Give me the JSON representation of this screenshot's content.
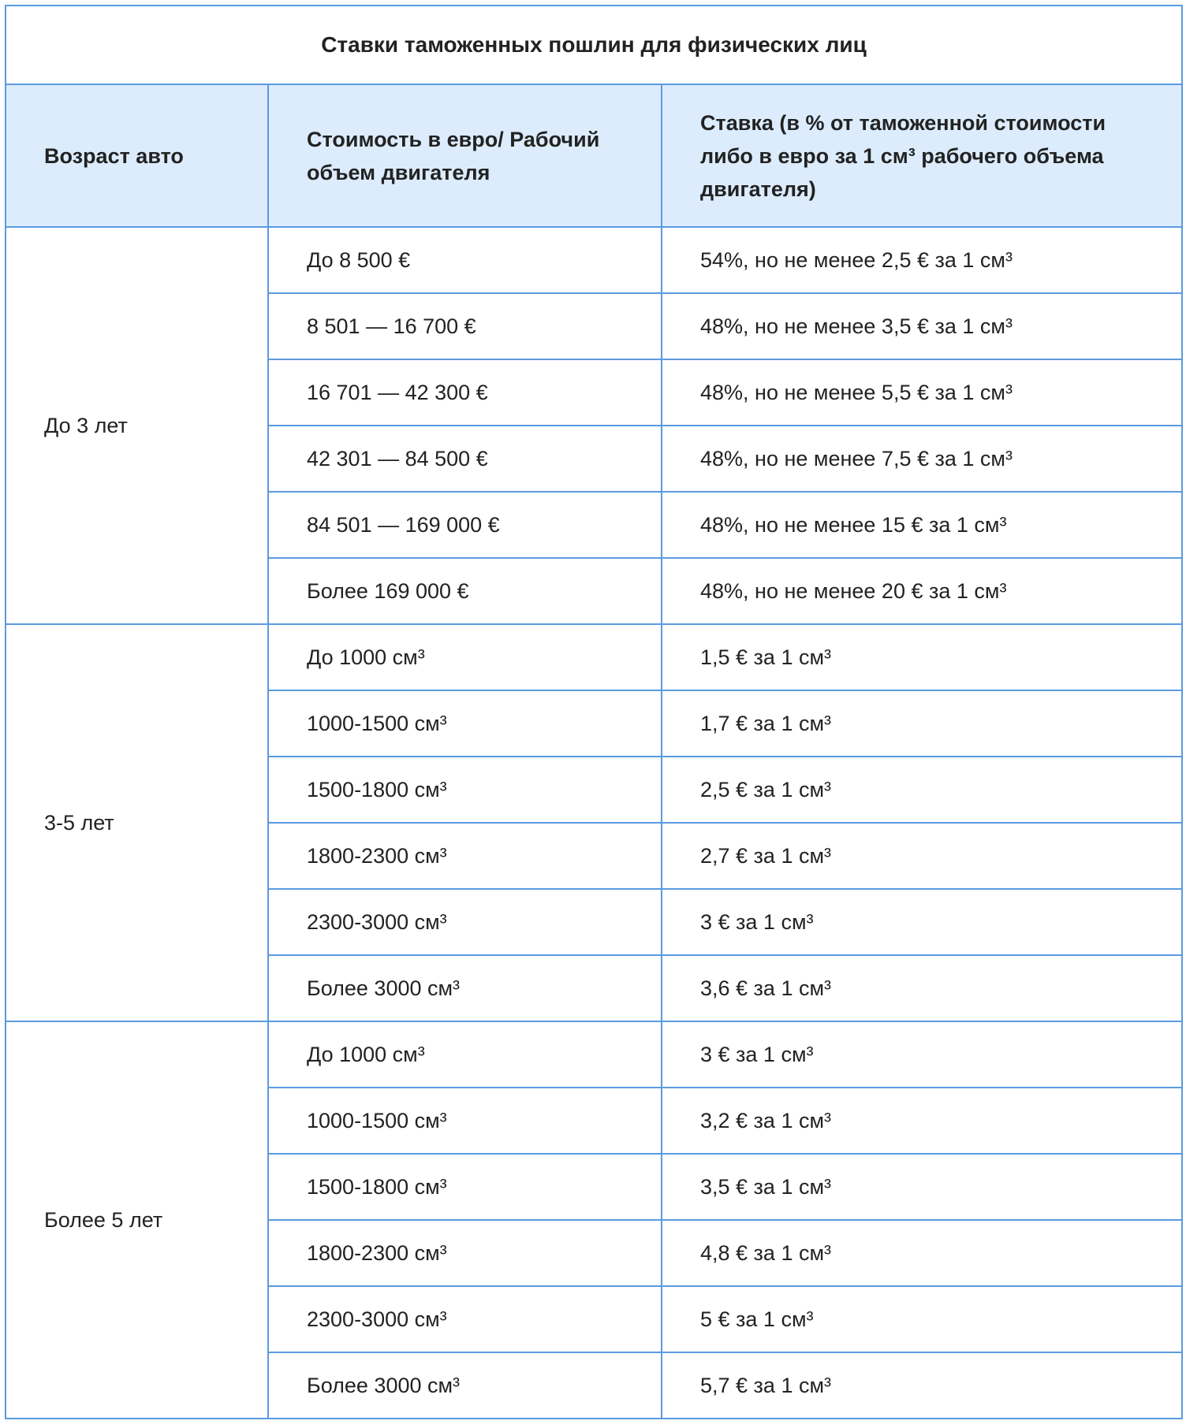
{
  "title": "Ставки таможенных пошлин для физических лиц",
  "headers": [
    "Возраст авто",
    "Стоимость в евро/ Рабочий объем двигателя",
    "Ставка (в % от таможенной стоимости либо в евро за 1 см³ рабочего объема двигателя)"
  ],
  "groups": [
    {
      "age": "До 3 лет",
      "rows": [
        [
          "До 8 500 €",
          "54%, но не менее 2,5 € за 1 см³"
        ],
        [
          "8 501 — 16 700 €",
          "48%, но не менее 3,5 € за 1 см³"
        ],
        [
          "16 701 — 42 300 €",
          "48%, но не менее 5,5 € за 1 см³"
        ],
        [
          "42 301 — 84 500 €",
          "48%, но не менее 7,5 € за 1 см³"
        ],
        [
          "84 501 — 169 000 €",
          "48%, но не менее 15 € за 1 см³"
        ],
        [
          "Более 169 000 €",
          "48%, но не менее 20 € за 1 см³"
        ]
      ]
    },
    {
      "age": "3-5 лет",
      "rows": [
        [
          "До 1000 см³",
          "1,5 € за 1 см³"
        ],
        [
          "1000-1500 см³",
          "1,7 € за 1 см³"
        ],
        [
          "1500-1800 см³",
          "2,5 € за 1 см³"
        ],
        [
          "1800-2300 см³",
          "2,7 € за 1 см³"
        ],
        [
          "2300-3000 см³",
          "3 € за 1 см³"
        ],
        [
          "Более 3000 см³",
          "3,6 € за 1 см³"
        ]
      ]
    },
    {
      "age": "Более 5 лет",
      "rows": [
        [
          "До 1000 см³",
          "3 € за 1 см³"
        ],
        [
          "1000-1500 см³",
          "3,2 € за 1 см³"
        ],
        [
          "1500-1800 см³",
          "3,5 € за 1 см³"
        ],
        [
          "1800-2300 см³",
          "4,8 € за 1 см³"
        ],
        [
          "2300-3000 см³",
          "5 € за 1 см³"
        ],
        [
          "Более 3000 см³",
          "5,7 € за 1 см³"
        ]
      ]
    }
  ],
  "colors": {
    "border": "#5b9be0",
    "header_bg": "#dcecfd"
  }
}
